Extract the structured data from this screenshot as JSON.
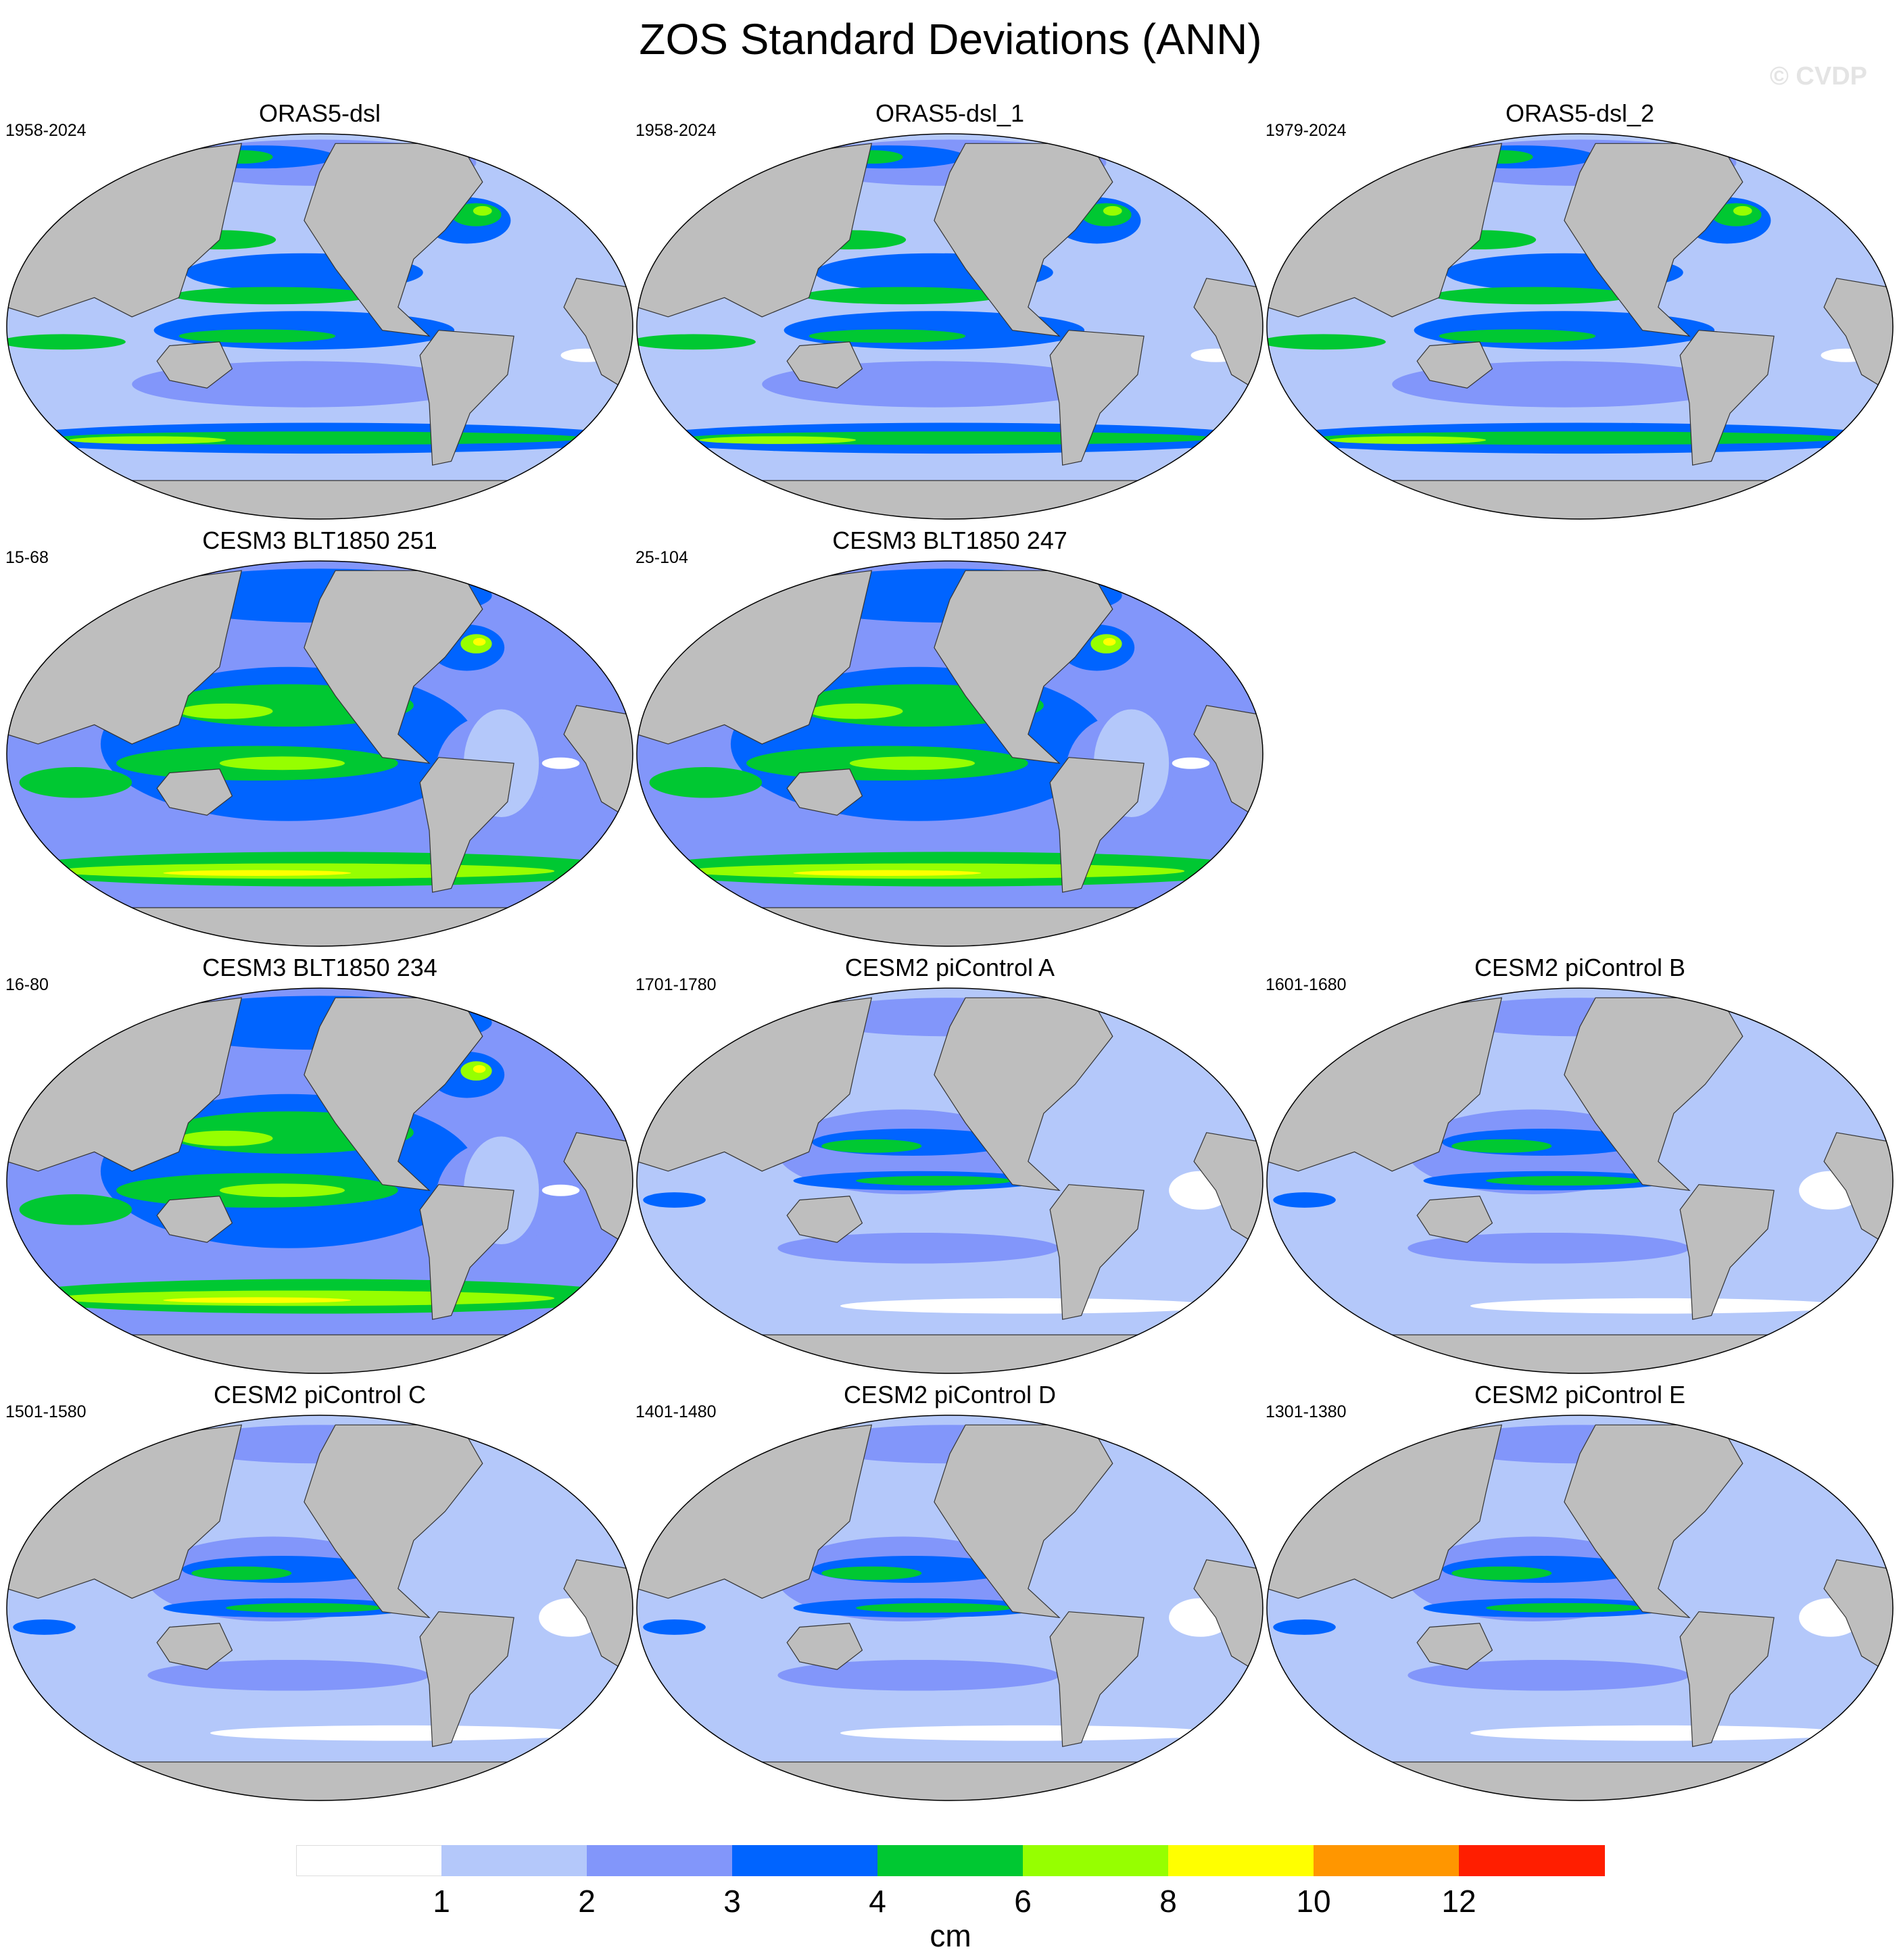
{
  "title": "ZOS Standard Deviations (ANN)",
  "watermark": "© CVDP",
  "panels": [
    {
      "title": "ORAS5-dsl",
      "years": "1958-2024",
      "variant": "obs"
    },
    {
      "title": "ORAS5-dsl_1",
      "years": "1958-2024",
      "variant": "obs"
    },
    {
      "title": "ORAS5-dsl_2",
      "years": "1979-2024",
      "variant": "obs"
    },
    {
      "title": "CESM3 BLT1850 251",
      "years": "15-68",
      "variant": "cesm3"
    },
    {
      "title": "CESM3 BLT1850 247",
      "years": "25-104",
      "variant": "cesm3"
    },
    {
      "title": "CESM3 BLT1850 234",
      "years": "16-80",
      "variant": "cesm3"
    },
    {
      "title": "CESM2 piControl A",
      "years": "1701-1780",
      "variant": "cesm2"
    },
    {
      "title": "CESM2 piControl B",
      "years": "1601-1680",
      "variant": "cesm2"
    },
    {
      "title": "CESM2 piControl C",
      "years": "1501-1580",
      "variant": "cesm2"
    },
    {
      "title": "CESM2 piControl D",
      "years": "1401-1480",
      "variant": "cesm2"
    },
    {
      "title": "CESM2 piControl E",
      "years": "1301-1380",
      "variant": "cesm2"
    }
  ],
  "colorbar": {
    "units": "cm",
    "levels": [
      "1",
      "2",
      "3",
      "4",
      "6",
      "8",
      "10",
      "12"
    ],
    "colors": [
      "#ffffff",
      "#b4c8fa",
      "#8296fa",
      "#0064ff",
      "#00c832",
      "#96ff00",
      "#ffff00",
      "#ff9600",
      "#ff1e00"
    ]
  },
  "land_color": "#bebebe"
}
